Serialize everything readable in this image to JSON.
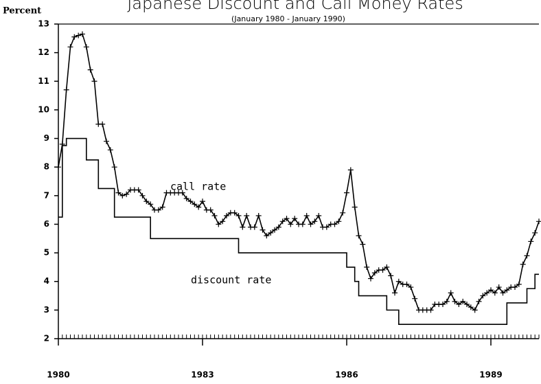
{
  "chart_data": {
    "type": "line",
    "title": "Japanese Discount and Call Money Rates",
    "subtitle": "(January 1980 - January 1990)",
    "y_label": "Percent",
    "annotations": [
      "call rate",
      "discount rate"
    ],
    "x": [
      1980,
      1980.083,
      1980.167,
      1980.25,
      1980.333,
      1980.417,
      1980.5,
      1980.583,
      1980.667,
      1980.75,
      1980.833,
      1980.917,
      1981,
      1981.083,
      1981.167,
      1981.25,
      1981.333,
      1981.417,
      1981.5,
      1981.583,
      1981.667,
      1981.75,
      1981.833,
      1981.917,
      1982,
      1982.083,
      1982.167,
      1982.25,
      1982.333,
      1982.417,
      1982.5,
      1982.583,
      1982.667,
      1982.75,
      1982.833,
      1982.917,
      1983,
      1983.083,
      1983.167,
      1983.25,
      1983.333,
      1983.417,
      1983.5,
      1983.583,
      1983.667,
      1983.75,
      1983.833,
      1983.917,
      1984,
      1984.083,
      1984.167,
      1984.25,
      1984.333,
      1984.417,
      1984.5,
      1984.583,
      1984.667,
      1984.75,
      1984.833,
      1984.917,
      1985,
      1985.083,
      1985.167,
      1985.25,
      1985.333,
      1985.417,
      1985.5,
      1985.583,
      1985.667,
      1985.75,
      1985.833,
      1985.917,
      1986,
      1986.083,
      1986.167,
      1986.25,
      1986.333,
      1986.417,
      1986.5,
      1986.583,
      1986.667,
      1986.75,
      1986.833,
      1986.917,
      1987,
      1987.083,
      1987.167,
      1987.25,
      1987.333,
      1987.417,
      1987.5,
      1987.583,
      1987.667,
      1987.75,
      1987.833,
      1987.917,
      1988,
      1988.083,
      1988.167,
      1988.25,
      1988.333,
      1988.417,
      1988.5,
      1988.583,
      1988.667,
      1988.75,
      1988.833,
      1988.917,
      1989,
      1989.083,
      1989.167,
      1989.25,
      1989.333,
      1989.417,
      1989.5,
      1989.583,
      1989.667,
      1989.75,
      1989.833,
      1989.917,
      1990
    ],
    "series": [
      {
        "name": "call rate",
        "color": "#000000",
        "marker": "+",
        "step": false,
        "values": [
          8.0,
          8.8,
          10.7,
          12.2,
          12.55,
          12.6,
          12.65,
          12.2,
          11.4,
          11.0,
          9.5,
          9.5,
          8.9,
          8.6,
          8.0,
          7.1,
          7.0,
          7.05,
          7.2,
          7.2,
          7.2,
          7.0,
          6.8,
          6.7,
          6.5,
          6.5,
          6.6,
          7.1,
          7.1,
          7.1,
          7.1,
          7.1,
          6.9,
          6.8,
          6.7,
          6.6,
          6.8,
          6.5,
          6.5,
          6.3,
          6.0,
          6.1,
          6.3,
          6.4,
          6.4,
          6.3,
          5.9,
          6.3,
          5.9,
          5.9,
          6.3,
          5.8,
          5.6,
          5.7,
          5.8,
          5.9,
          6.1,
          6.2,
          6.0,
          6.2,
          6.0,
          6.0,
          6.3,
          6.0,
          6.1,
          6.3,
          5.9,
          5.9,
          6.0,
          6.0,
          6.1,
          6.4,
          7.1,
          7.9,
          6.6,
          5.6,
          5.3,
          4.5,
          4.1,
          4.3,
          4.4,
          4.4,
          4.5,
          4.2,
          3.6,
          4.0,
          3.9,
          3.9,
          3.8,
          3.4,
          3.0,
          3.0,
          3.0,
          3.0,
          3.2,
          3.2,
          3.2,
          3.3,
          3.6,
          3.3,
          3.2,
          3.3,
          3.2,
          3.1,
          3.0,
          3.3,
          3.5,
          3.6,
          3.7,
          3.6,
          3.8,
          3.6,
          3.7,
          3.8,
          3.8,
          3.9,
          4.6,
          4.9,
          5.4,
          5.7,
          6.1
        ]
      },
      {
        "name": "discount rate",
        "color": "#000000",
        "marker": null,
        "step": true,
        "values": [
          6.25,
          8.75,
          9,
          9,
          9,
          9,
          9,
          8.25,
          8.25,
          8.25,
          7.25,
          7.25,
          7.25,
          7.25,
          6.25,
          6.25,
          6.25,
          6.25,
          6.25,
          6.25,
          6.25,
          6.25,
          6.25,
          5.5,
          5.5,
          5.5,
          5.5,
          5.5,
          5.5,
          5.5,
          5.5,
          5.5,
          5.5,
          5.5,
          5.5,
          5.5,
          5.5,
          5.5,
          5.5,
          5.5,
          5.5,
          5.5,
          5.5,
          5.5,
          5.5,
          5,
          5,
          5,
          5,
          5,
          5,
          5,
          5,
          5,
          5,
          5,
          5,
          5,
          5,
          5,
          5,
          5,
          5,
          5,
          5,
          5,
          5,
          5,
          5,
          5,
          5,
          5,
          4.5,
          4.5,
          4,
          3.5,
          3.5,
          3.5,
          3.5,
          3.5,
          3.5,
          3.5,
          3,
          3,
          3,
          2.5,
          2.5,
          2.5,
          2.5,
          2.5,
          2.5,
          2.5,
          2.5,
          2.5,
          2.5,
          2.5,
          2.5,
          2.5,
          2.5,
          2.5,
          2.5,
          2.5,
          2.5,
          2.5,
          2.5,
          2.5,
          2.5,
          2.5,
          2.5,
          2.5,
          2.5,
          2.5,
          3.25,
          3.25,
          3.25,
          3.25,
          3.25,
          3.75,
          3.75,
          4.25,
          4.25
        ]
      }
    ],
    "xlim": [
      1980,
      1990
    ],
    "xticks": [
      1980,
      1983,
      1986,
      1989
    ],
    "ylim": [
      2,
      13
    ],
    "yticks": [
      2,
      3,
      4,
      5,
      6,
      7,
      8,
      9,
      10,
      11,
      12,
      13
    ],
    "grid": false,
    "minor_x_ticks": true
  }
}
